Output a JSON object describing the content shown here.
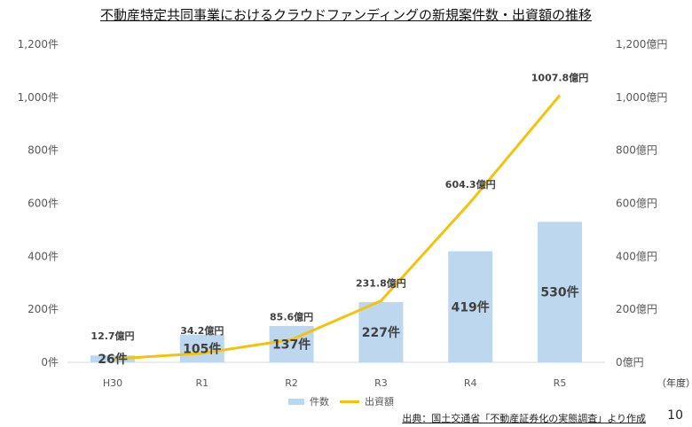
{
  "title": "不動産特定共同事業におけるクラウドファンディングの新規案件数・出資額の推移",
  "source": "出典：国土交通省「不動産証券化の実態調査」より作成",
  "page_number": "10",
  "x_unit": "（年度）",
  "chart_data": {
    "type": "bar+line",
    "categories": [
      "H30",
      "R1",
      "R2",
      "R3",
      "R4",
      "R5"
    ],
    "series": [
      {
        "name": "件数",
        "type": "bar",
        "axis": "left",
        "values": [
          26,
          105,
          137,
          227,
          419,
          530
        ],
        "labels": [
          "26件",
          "105件",
          "137件",
          "227件",
          "419件",
          "530件"
        ],
        "color": "#bdd7ee"
      },
      {
        "name": "出資額",
        "type": "line",
        "axis": "right",
        "values": [
          12.7,
          34.2,
          85.6,
          231.8,
          604.3,
          1007.8
        ],
        "labels": [
          "12.7億円",
          "34.2億円",
          "85.6億円",
          "231.8億円",
          "604.3億円",
          "1007.8億円"
        ],
        "color": "#f5c20b"
      }
    ],
    "left_axis": {
      "ylim": [
        0,
        1200
      ],
      "ticks": [
        "0件",
        "200件",
        "400件",
        "600件",
        "800件",
        "1,000件",
        "1,200件"
      ]
    },
    "right_axis": {
      "ylim": [
        0,
        1200
      ],
      "ticks": [
        "0億円",
        "200億円",
        "400億円",
        "600億円",
        "800億円",
        "1,000億円",
        "1,200億円"
      ]
    },
    "grid": false,
    "legend": "bottom"
  }
}
